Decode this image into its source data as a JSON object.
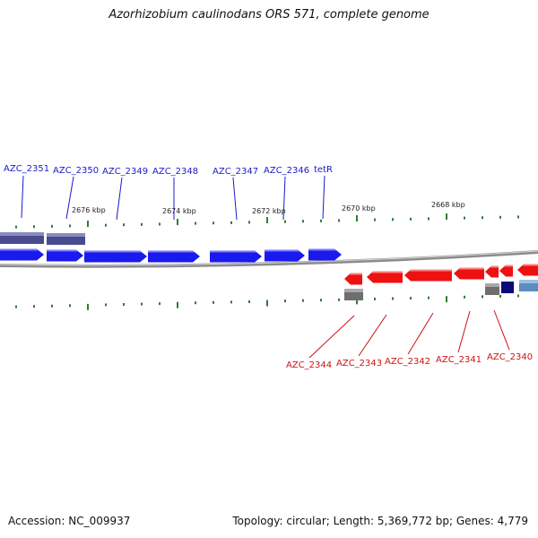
{
  "title": "Azorhizobium caulinodans ORS 571, complete genome",
  "footer": {
    "accession": "Accession: NC_009937",
    "summary": "Topology: circular; Length: 5,369,772 bp; Genes: 4,779"
  },
  "scale_labels": [
    "2676 kbp",
    "2674 kbp",
    "2672 kbp",
    "2670 kbp",
    "2668 kbp"
  ],
  "colors": {
    "forward_gene": "#1a1aee",
    "reverse_gene": "#ee1111",
    "forward_label": "#1a1acc",
    "reverse_label": "#cc1111",
    "tick": "#2e7d32",
    "backbone": "#888888",
    "grey_feature": "#6e6e6e",
    "slate_feature": "#4a4a90",
    "navy_feature": "#0a0a78",
    "steelblue_feature": "#5a8cc0"
  },
  "forward_genes": [
    "AZC_2351",
    "AZC_2350",
    "AZC_2349",
    "AZC_2348",
    "AZC_2347",
    "AZC_2346",
    "tetR"
  ],
  "reverse_genes": [
    "AZC_2344",
    "AZC_2343",
    "AZC_2342",
    "AZC_2341",
    "AZC_2340"
  ]
}
